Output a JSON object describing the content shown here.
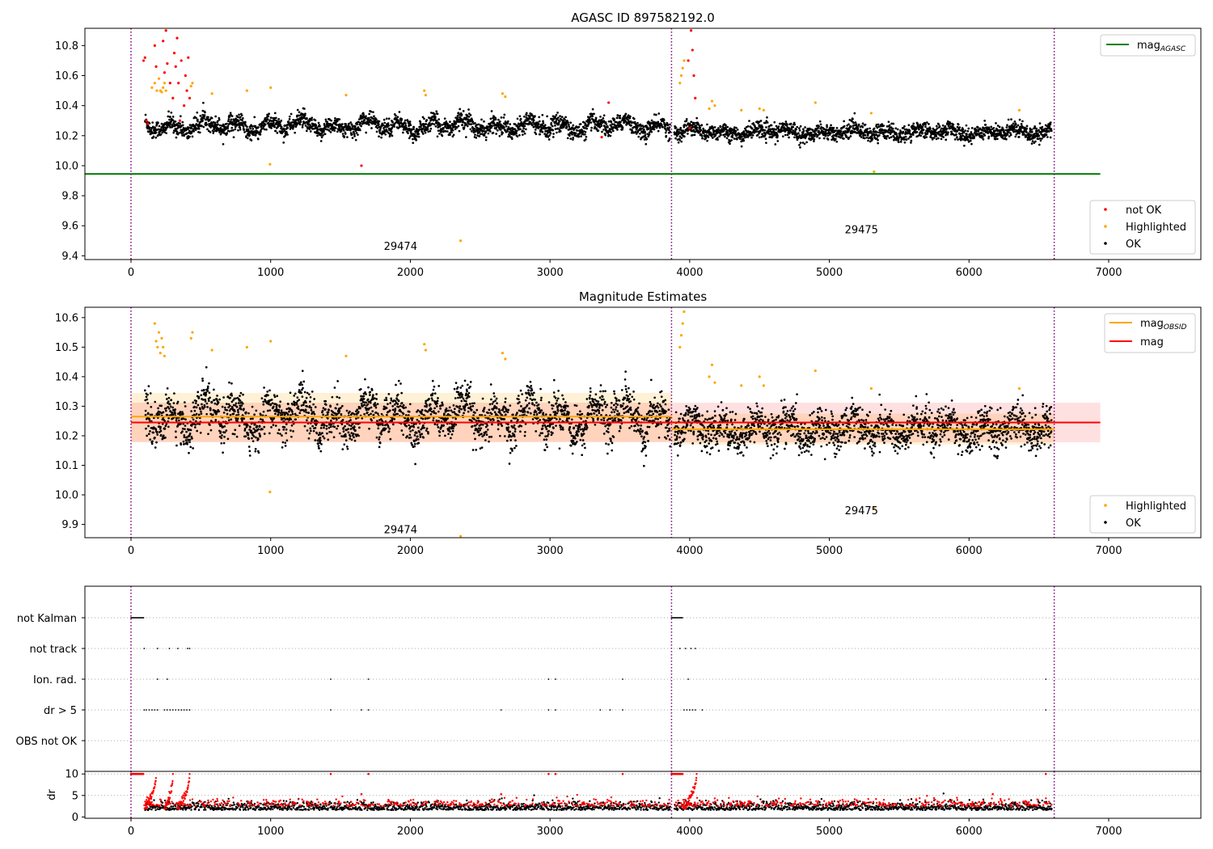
{
  "chart_data": [
    {
      "panel": "top",
      "type": "scatter",
      "title": "AGASC ID 897582192.0",
      "xlim": [
        -330,
        7660
      ],
      "ylim": [
        9.375,
        10.915
      ],
      "xticks": [
        0,
        1000,
        2000,
        3000,
        4000,
        5000,
        6000,
        7000
      ],
      "yticks": [
        9.4,
        9.6,
        9.8,
        10.0,
        10.2,
        10.4,
        10.6,
        10.8
      ],
      "ytick_labels": [
        "9.4",
        "9.6",
        "9.8",
        "10.0",
        "10.2",
        "10.4",
        "10.6",
        "10.8"
      ],
      "obsid_boundaries": [
        0,
        3870,
        6610
      ],
      "obsid_labels": [
        {
          "text": "29474",
          "x": 1810,
          "y": 9.44
        },
        {
          "text": "29475",
          "x": 5110,
          "y": 9.55
        }
      ],
      "lines": [
        {
          "name": "mag_AGASC",
          "legend_text": "mag",
          "legend_sub": "AGASC",
          "color": "#008000",
          "y": 9.945,
          "x": [
            -330,
            6940
          ]
        }
      ],
      "scatter_legend": [
        {
          "label": "not OK",
          "color": "#ff0000"
        },
        {
          "label": "Highlighted",
          "color": "#ffa500"
        },
        {
          "label": "OK",
          "color": "#000000"
        }
      ],
      "ok_segments": [
        {
          "x0": 100,
          "x1": 3860,
          "mean": 10.265,
          "amp": 0.055,
          "noise": 0.028
        },
        {
          "x0": 3890,
          "x1": 6590,
          "mean": 10.225,
          "amp": 0.035,
          "noise": 0.026
        }
      ],
      "highlighted_points": [
        [
          150,
          10.52
        ],
        [
          170,
          10.55
        ],
        [
          185,
          10.5
        ],
        [
          200,
          10.58
        ],
        [
          210,
          10.5
        ],
        [
          220,
          10.49
        ],
        [
          230,
          10.52
        ],
        [
          240,
          10.55
        ],
        [
          250,
          10.5
        ],
        [
          430,
          10.53
        ],
        [
          440,
          10.55
        ],
        [
          580,
          10.48
        ],
        [
          830,
          10.5
        ],
        [
          1000,
          10.52
        ],
        [
          995,
          10.01
        ],
        [
          1540,
          10.47
        ],
        [
          2100,
          10.5
        ],
        [
          2110,
          10.47
        ],
        [
          2660,
          10.48
        ],
        [
          2680,
          10.46
        ],
        [
          3930,
          10.55
        ],
        [
          3940,
          10.6
        ],
        [
          3950,
          10.65
        ],
        [
          3960,
          10.7
        ],
        [
          4140,
          10.38
        ],
        [
          4160,
          10.43
        ],
        [
          4180,
          10.4
        ],
        [
          4370,
          10.37
        ],
        [
          4500,
          10.38
        ],
        [
          4530,
          10.37
        ],
        [
          4900,
          10.42
        ],
        [
          5300,
          10.35
        ],
        [
          5320,
          9.96
        ],
        [
          6360,
          10.37
        ],
        [
          2360,
          9.5
        ]
      ],
      "not_ok_points": [
        [
          90,
          10.7
        ],
        [
          100,
          10.72
        ],
        [
          110,
          10.3
        ],
        [
          120,
          10.28
        ],
        [
          170,
          10.8
        ],
        [
          180,
          10.66
        ],
        [
          230,
          10.83
        ],
        [
          240,
          10.62
        ],
        [
          250,
          10.9
        ],
        [
          260,
          10.68
        ],
        [
          280,
          10.55
        ],
        [
          300,
          10.45
        ],
        [
          310,
          10.75
        ],
        [
          320,
          10.66
        ],
        [
          330,
          10.85
        ],
        [
          340,
          10.55
        ],
        [
          350,
          10.3
        ],
        [
          360,
          10.7
        ],
        [
          380,
          10.4
        ],
        [
          390,
          10.6
        ],
        [
          400,
          10.5
        ],
        [
          410,
          10.72
        ],
        [
          420,
          10.45
        ],
        [
          3370,
          10.19
        ],
        [
          3420,
          10.42
        ],
        [
          1650,
          10.0
        ],
        [
          3990,
          10.7
        ],
        [
          4010,
          10.9
        ],
        [
          4020,
          10.77
        ],
        [
          4030,
          10.6
        ],
        [
          4040,
          10.45
        ],
        [
          4000,
          10.25
        ]
      ],
      "legend_upper": "top-right",
      "legend_lower": "bottom-right"
    },
    {
      "panel": "middle",
      "type": "scatter",
      "title": "Magnitude Estimates",
      "xlim": [
        -330,
        7660
      ],
      "ylim": [
        9.855,
        10.635
      ],
      "xticks": [
        0,
        1000,
        2000,
        3000,
        4000,
        5000,
        6000,
        7000
      ],
      "yticks": [
        9.9,
        10.0,
        10.1,
        10.2,
        10.3,
        10.4,
        10.5,
        10.6
      ],
      "ytick_labels": [
        "9.9",
        "10.0",
        "10.1",
        "10.2",
        "10.3",
        "10.4",
        "10.5",
        "10.6"
      ],
      "obsid_boundaries": [
        0,
        3870,
        6610
      ],
      "obsid_labels": [
        {
          "text": "29474",
          "x": 1810,
          "y": 9.87
        },
        {
          "text": "29475",
          "x": 5110,
          "y": 9.935
        }
      ],
      "lines": [
        {
          "name": "mag_OBSID",
          "legend_text": "mag",
          "legend_sub": "OBSID",
          "color": "#ffa500",
          "segments": [
            [
              0,
              3870,
              10.265
            ],
            [
              3870,
              6610,
              10.222
            ]
          ]
        },
        {
          "name": "mag",
          "legend_text": "mag",
          "legend_sub": "",
          "color": "#ff0000",
          "segments": [
            [
              0,
              6940,
              10.245
            ]
          ]
        }
      ],
      "bands": [
        {
          "color": "#ffa500",
          "x0": 0,
          "x1": 3870,
          "y0": 10.18,
          "y1": 10.345
        },
        {
          "color": "#ffa500",
          "x0": 3870,
          "x1": 6610,
          "y0": 10.17,
          "y1": 10.275
        },
        {
          "color": "#ff0000",
          "x0": 0,
          "x1": 6940,
          "y0": 10.178,
          "y1": 10.312
        }
      ],
      "scatter_legend": [
        {
          "label": "Highlighted",
          "color": "#ffa500"
        },
        {
          "label": "OK",
          "color": "#000000"
        }
      ],
      "ok_segments": [
        {
          "x0": 100,
          "x1": 3860,
          "mean": 10.265,
          "amp": 0.07,
          "noise": 0.035
        },
        {
          "x0": 3890,
          "x1": 6590,
          "mean": 10.222,
          "amp": 0.045,
          "noise": 0.032
        }
      ],
      "highlighted_points": [
        [
          170,
          10.58
        ],
        [
          180,
          10.52
        ],
        [
          190,
          10.5
        ],
        [
          200,
          10.55
        ],
        [
          210,
          10.48
        ],
        [
          220,
          10.53
        ],
        [
          230,
          10.5
        ],
        [
          240,
          10.47
        ],
        [
          440,
          10.55
        ],
        [
          430,
          10.53
        ],
        [
          580,
          10.49
        ],
        [
          830,
          10.5
        ],
        [
          1000,
          10.52
        ],
        [
          995,
          10.01
        ],
        [
          1540,
          10.47
        ],
        [
          2100,
          10.51
        ],
        [
          2110,
          10.49
        ],
        [
          2660,
          10.48
        ],
        [
          2680,
          10.46
        ],
        [
          3930,
          10.5
        ],
        [
          3940,
          10.54
        ],
        [
          3950,
          10.58
        ],
        [
          3960,
          10.62
        ],
        [
          4140,
          10.4
        ],
        [
          4160,
          10.44
        ],
        [
          4180,
          10.38
        ],
        [
          4370,
          10.37
        ],
        [
          4500,
          10.4
        ],
        [
          4530,
          10.37
        ],
        [
          4900,
          10.42
        ],
        [
          5300,
          10.36
        ],
        [
          5320,
          9.955
        ],
        [
          6360,
          10.36
        ],
        [
          2360,
          9.86
        ]
      ],
      "legend_upper": "top-right",
      "legend_lower": "bottom-right"
    },
    {
      "panel": "flags",
      "type": "scatter",
      "xlim": [
        -330,
        7660
      ],
      "categories": [
        "not Kalman",
        "not track",
        "Ion. rad.",
        "dr > 5",
        "OBS not OK"
      ],
      "obsid_boundaries": [
        0,
        3870,
        6610
      ],
      "flag_points": {
        "not Kalman": [
          [
            0,
            90
          ],
          [
            3870,
            3950
          ]
        ],
        "not track": [
          95,
          190,
          275,
          335,
          405,
          420,
          3930,
          3970,
          4010,
          4040
        ],
        "Ion. rad.": [
          190,
          260,
          1430,
          1700,
          2990,
          3040,
          3520,
          3990,
          6550
        ],
        "dr > 5": [
          95,
          110,
          130,
          150,
          170,
          190,
          240,
          260,
          280,
          300,
          320,
          340,
          360,
          380,
          400,
          420,
          1430,
          1650,
          1700,
          2650,
          2990,
          3040,
          3360,
          3430,
          3520,
          3960,
          3980,
          4000,
          4020,
          4040,
          4090,
          6550
        ],
        "OBS not OK": []
      }
    },
    {
      "panel": "dr",
      "type": "scatter",
      "ylabel": "dr",
      "xlim": [
        -330,
        7660
      ],
      "ylim": [
        -0.3,
        10.6
      ],
      "yticks": [
        0,
        5,
        10
      ],
      "ytick_labels": [
        "0",
        "5",
        "10"
      ],
      "xticks": [
        0,
        1000,
        2000,
        3000,
        4000,
        5000,
        6000,
        7000
      ],
      "obsid_boundaries": [
        0,
        3870,
        6610
      ],
      "segments": [
        {
          "x0": 100,
          "x1": 3860
        },
        {
          "x0": 3890,
          "x1": 6590
        }
      ]
    }
  ]
}
